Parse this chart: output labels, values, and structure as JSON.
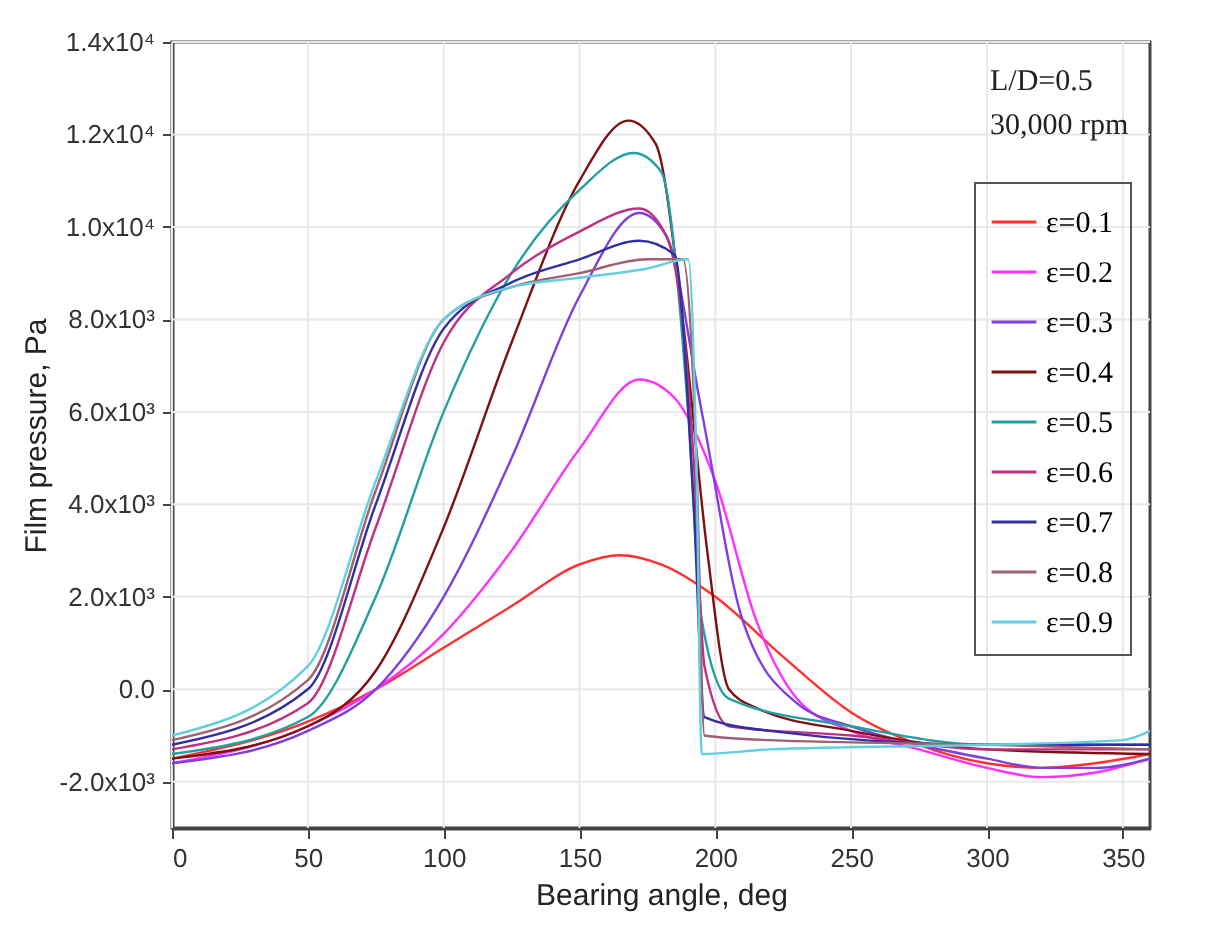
{
  "chart_data": {
    "type": "line",
    "xlabel": "Bearing angle, deg",
    "ylabel": "Film pressure, Pa",
    "xlim": [
      0,
      360
    ],
    "xticks": [
      0,
      50,
      100,
      150,
      200,
      250,
      300,
      350
    ],
    "ylim": [
      -3000,
      14000
    ],
    "yticks": [
      {
        "value": -2000,
        "label": "-2.0x10³"
      },
      {
        "value": 0,
        "label": "0.0"
      },
      {
        "value": 2000,
        "label": "2.0x10³"
      },
      {
        "value": 4000,
        "label": "4.0x10³"
      },
      {
        "value": 6000,
        "label": "6.0x10³"
      },
      {
        "value": 8000,
        "label": "8.0x10³"
      },
      {
        "value": 10000,
        "label": "1.0x10⁴"
      },
      {
        "value": 12000,
        "label": "1.2x10⁴"
      },
      {
        "value": 14000,
        "label": "1.4x10⁴"
      }
    ],
    "grid": true,
    "legend": "top right",
    "line_style": "solid",
    "annotations": [
      "L/D=0.5",
      "30,000 rpm"
    ],
    "series": [
      {
        "name": "ε=0.1",
        "color": "#ff3030",
        "x": [
          0,
          50,
          75,
          100,
          125,
          150,
          165,
          180,
          200,
          225,
          250,
          275,
          300,
          320,
          340,
          360
        ],
        "values": [
          -1500,
          -700,
          0,
          900,
          1800,
          2700,
          2900,
          2700,
          2000,
          700,
          -500,
          -1200,
          -1600,
          -1700,
          -1600,
          -1400
        ]
      },
      {
        "name": "ε=0.2",
        "color": "#ff30ff",
        "x": [
          0,
          50,
          75,
          100,
          125,
          150,
          172,
          185,
          200,
          215,
          230,
          250,
          275,
          300,
          320,
          340,
          360
        ],
        "values": [
          -1600,
          -800,
          0,
          1200,
          3000,
          5200,
          6700,
          6300,
          4500,
          1500,
          -200,
          -900,
          -1300,
          -1700,
          -1900,
          -1800,
          -1500
        ]
      },
      {
        "name": "ε=0.3",
        "color": "#7f3fdf",
        "x": [
          0,
          50,
          75,
          100,
          125,
          150,
          172,
          182,
          195,
          210,
          230,
          250,
          275,
          300,
          320,
          340,
          360
        ],
        "values": [
          -1600,
          -900,
          0,
          2000,
          5000,
          8500,
          10300,
          9800,
          6000,
          1500,
          -300,
          -800,
          -1200,
          -1500,
          -1700,
          -1700,
          -1500
        ]
      },
      {
        "name": "ε=0.4",
        "color": "#7f1010",
        "x": [
          0,
          50,
          75,
          100,
          125,
          150,
          168,
          178,
          188,
          197,
          205,
          215,
          250,
          300,
          360
        ],
        "values": [
          -1500,
          -800,
          400,
          3500,
          7500,
          11000,
          12300,
          11800,
          8000,
          3000,
          0,
          -400,
          -900,
          -1300,
          -1400
        ]
      },
      {
        "name": "ε=0.5",
        "color": "#20a0a0",
        "x": [
          0,
          50,
          75,
          100,
          125,
          150,
          170,
          180,
          190,
          195,
          205,
          250,
          300,
          360
        ],
        "values": [
          -1400,
          -600,
          2000,
          6000,
          9000,
          10800,
          11600,
          11200,
          6000,
          1500,
          -200,
          -800,
          -1200,
          -1200
        ]
      },
      {
        "name": "ε=0.6",
        "color": "#c03080",
        "x": [
          0,
          50,
          75,
          100,
          125,
          150,
          172,
          182,
          192,
          196,
          205,
          250,
          300,
          360
        ],
        "values": [
          -1300,
          -300,
          3500,
          7500,
          9000,
          9900,
          10400,
          9800,
          5000,
          500,
          -800,
          -1000,
          -1300,
          -1300
        ]
      },
      {
        "name": "ε=0.7",
        "color": "#3030a0",
        "x": [
          0,
          50,
          75,
          100,
          125,
          150,
          172,
          185,
          192,
          196,
          220,
          300,
          360
        ],
        "values": [
          -1200,
          0,
          4000,
          7800,
          8800,
          9300,
          9700,
          9400,
          4000,
          -600,
          -900,
          -1200,
          -1200
        ]
      },
      {
        "name": "ε=0.8",
        "color": "#a06070",
        "x": [
          0,
          50,
          75,
          100,
          125,
          150,
          175,
          188,
          193,
          196,
          220,
          300,
          360
        ],
        "values": [
          -1100,
          200,
          4300,
          8000,
          8700,
          9000,
          9300,
          9300,
          5000,
          -1000,
          -1100,
          -1200,
          -1300
        ]
      },
      {
        "name": "ε=0.9",
        "color": "#60d0e0",
        "x": [
          0,
          50,
          75,
          100,
          125,
          150,
          175,
          190,
          193,
          195,
          220,
          300,
          350,
          360
        ],
        "values": [
          -1000,
          500,
          4500,
          8000,
          8700,
          8900,
          9100,
          9300,
          5000,
          -1400,
          -1300,
          -1200,
          -1100,
          -900
        ]
      }
    ]
  }
}
